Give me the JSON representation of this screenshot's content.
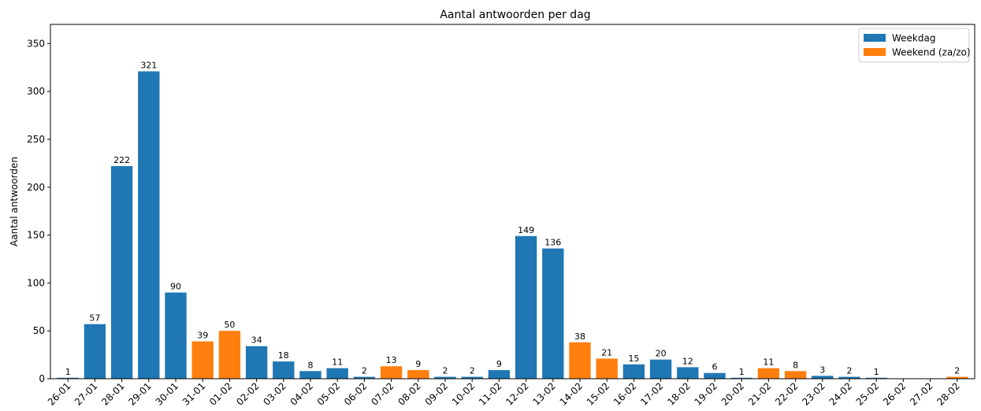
{
  "chart_data": {
    "type": "bar",
    "title": "Aantal antwoorden per dag",
    "xlabel": "",
    "ylabel": "Aantal antwoorden",
    "ylim": [
      0,
      370
    ],
    "yticks": [
      0,
      50,
      100,
      150,
      200,
      250,
      300,
      350
    ],
    "grid": false,
    "legend_position": "top-right",
    "categories": [
      "26-01",
      "27-01",
      "28-01",
      "29-01",
      "30-01",
      "31-01",
      "01-02",
      "02-02",
      "03-02",
      "04-02",
      "05-02",
      "06-02",
      "07-02",
      "08-02",
      "09-02",
      "10-02",
      "11-02",
      "12-02",
      "13-02",
      "14-02",
      "15-02",
      "16-02",
      "17-02",
      "18-02",
      "19-02",
      "20-02",
      "21-02",
      "22-02",
      "23-02",
      "24-02",
      "25-02",
      "26-02",
      "27-02",
      "28-02"
    ],
    "values": [
      1,
      57,
      222,
      321,
      90,
      39,
      50,
      34,
      18,
      8,
      11,
      2,
      13,
      9,
      2,
      2,
      9,
      149,
      136,
      38,
      21,
      15,
      20,
      12,
      6,
      1,
      11,
      8,
      3,
      2,
      1,
      0,
      0,
      2
    ],
    "groups": [
      "Weekdag",
      "Weekdag",
      "Weekdag",
      "Weekdag",
      "Weekdag",
      "Weekend (za/zo)",
      "Weekend (za/zo)",
      "Weekdag",
      "Weekdag",
      "Weekdag",
      "Weekdag",
      "Weekdag",
      "Weekend (za/zo)",
      "Weekend (za/zo)",
      "Weekdag",
      "Weekdag",
      "Weekdag",
      "Weekdag",
      "Weekdag",
      "Weekend (za/zo)",
      "Weekend (za/zo)",
      "Weekdag",
      "Weekdag",
      "Weekdag",
      "Weekdag",
      "Weekdag",
      "Weekend (za/zo)",
      "Weekend (za/zo)",
      "Weekdag",
      "Weekdag",
      "Weekdag",
      "Weekdag",
      "Weekdag",
      "Weekend (za/zo)"
    ],
    "data_labels": [
      "1",
      "57",
      "222",
      "321",
      "90",
      "39",
      "50",
      "34",
      "18",
      "8",
      "11",
      "2",
      "13",
      "9",
      "2",
      "2",
      "9",
      "149",
      "136",
      "38",
      "21",
      "15",
      "20",
      "12",
      "6",
      "1",
      "11",
      "8",
      "3",
      "2",
      "1",
      "",
      "",
      "2"
    ],
    "legend": [
      {
        "name": "Weekdag",
        "color": "#1f77b4"
      },
      {
        "name": "Weekend (za/zo)",
        "color": "#ff7f0e"
      }
    ]
  }
}
